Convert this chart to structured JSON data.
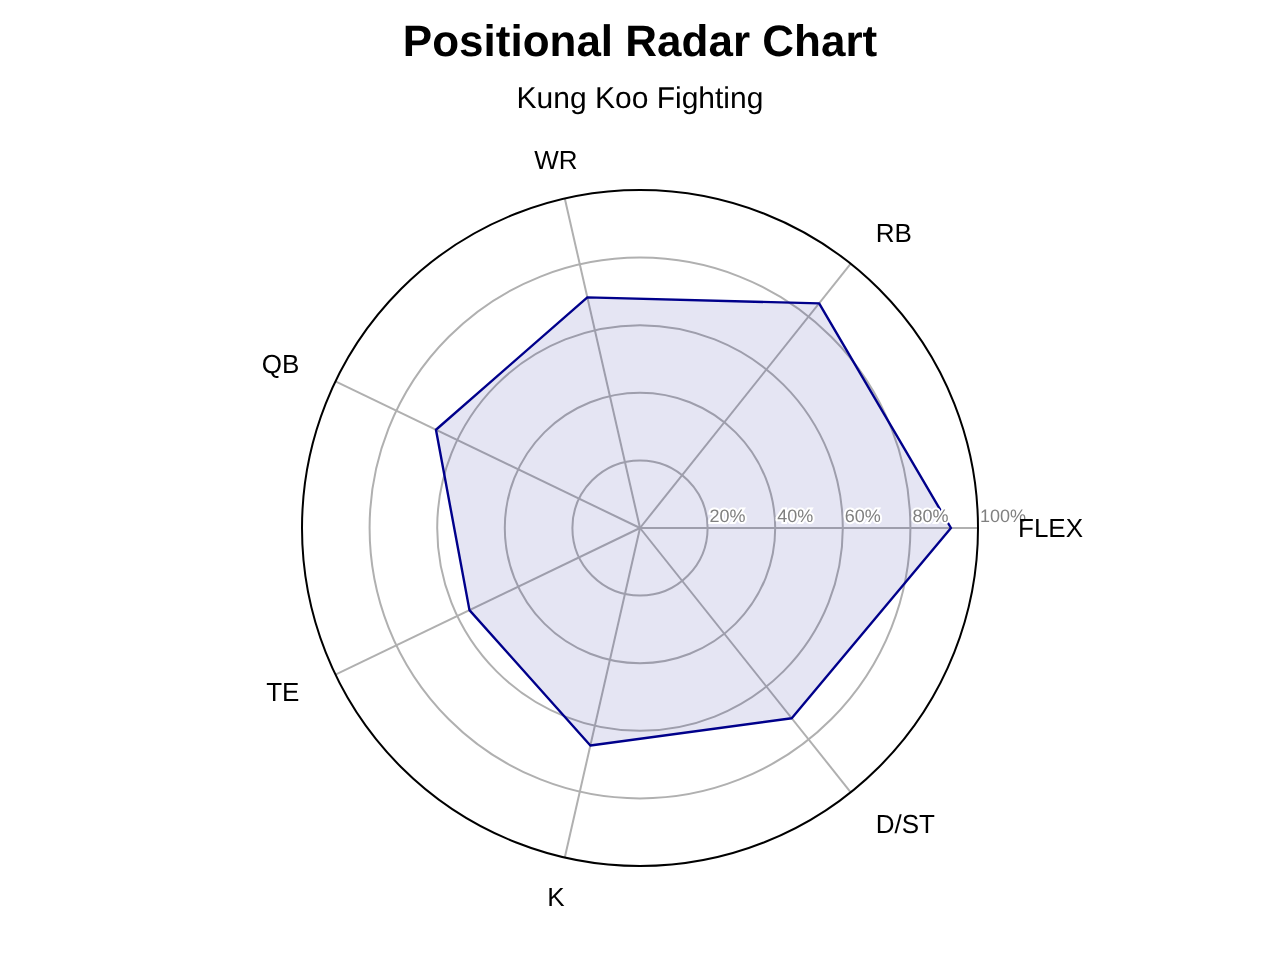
{
  "chart_data": {
    "type": "radar",
    "title": "Positional Radar Chart",
    "subtitle": "Kung Koo Fighting",
    "categories": [
      "WR",
      "RB",
      "FLEX",
      "D/ST",
      "K",
      "TE",
      "QB"
    ],
    "series": [
      {
        "color": "#00008b",
        "values": [
          70,
          85,
          92,
          72,
          66,
          56,
          67
        ]
      }
    ],
    "ylim": [
      0,
      100
    ],
    "yticks": [
      {
        "value": 20,
        "label": "20%"
      },
      {
        "value": 40,
        "label": "40%"
      },
      {
        "value": 60,
        "label": "60%"
      },
      {
        "value": 80,
        "label": "80%"
      },
      {
        "value": 100,
        "label": "100%"
      }
    ],
    "grid": true,
    "marker": "none"
  }
}
